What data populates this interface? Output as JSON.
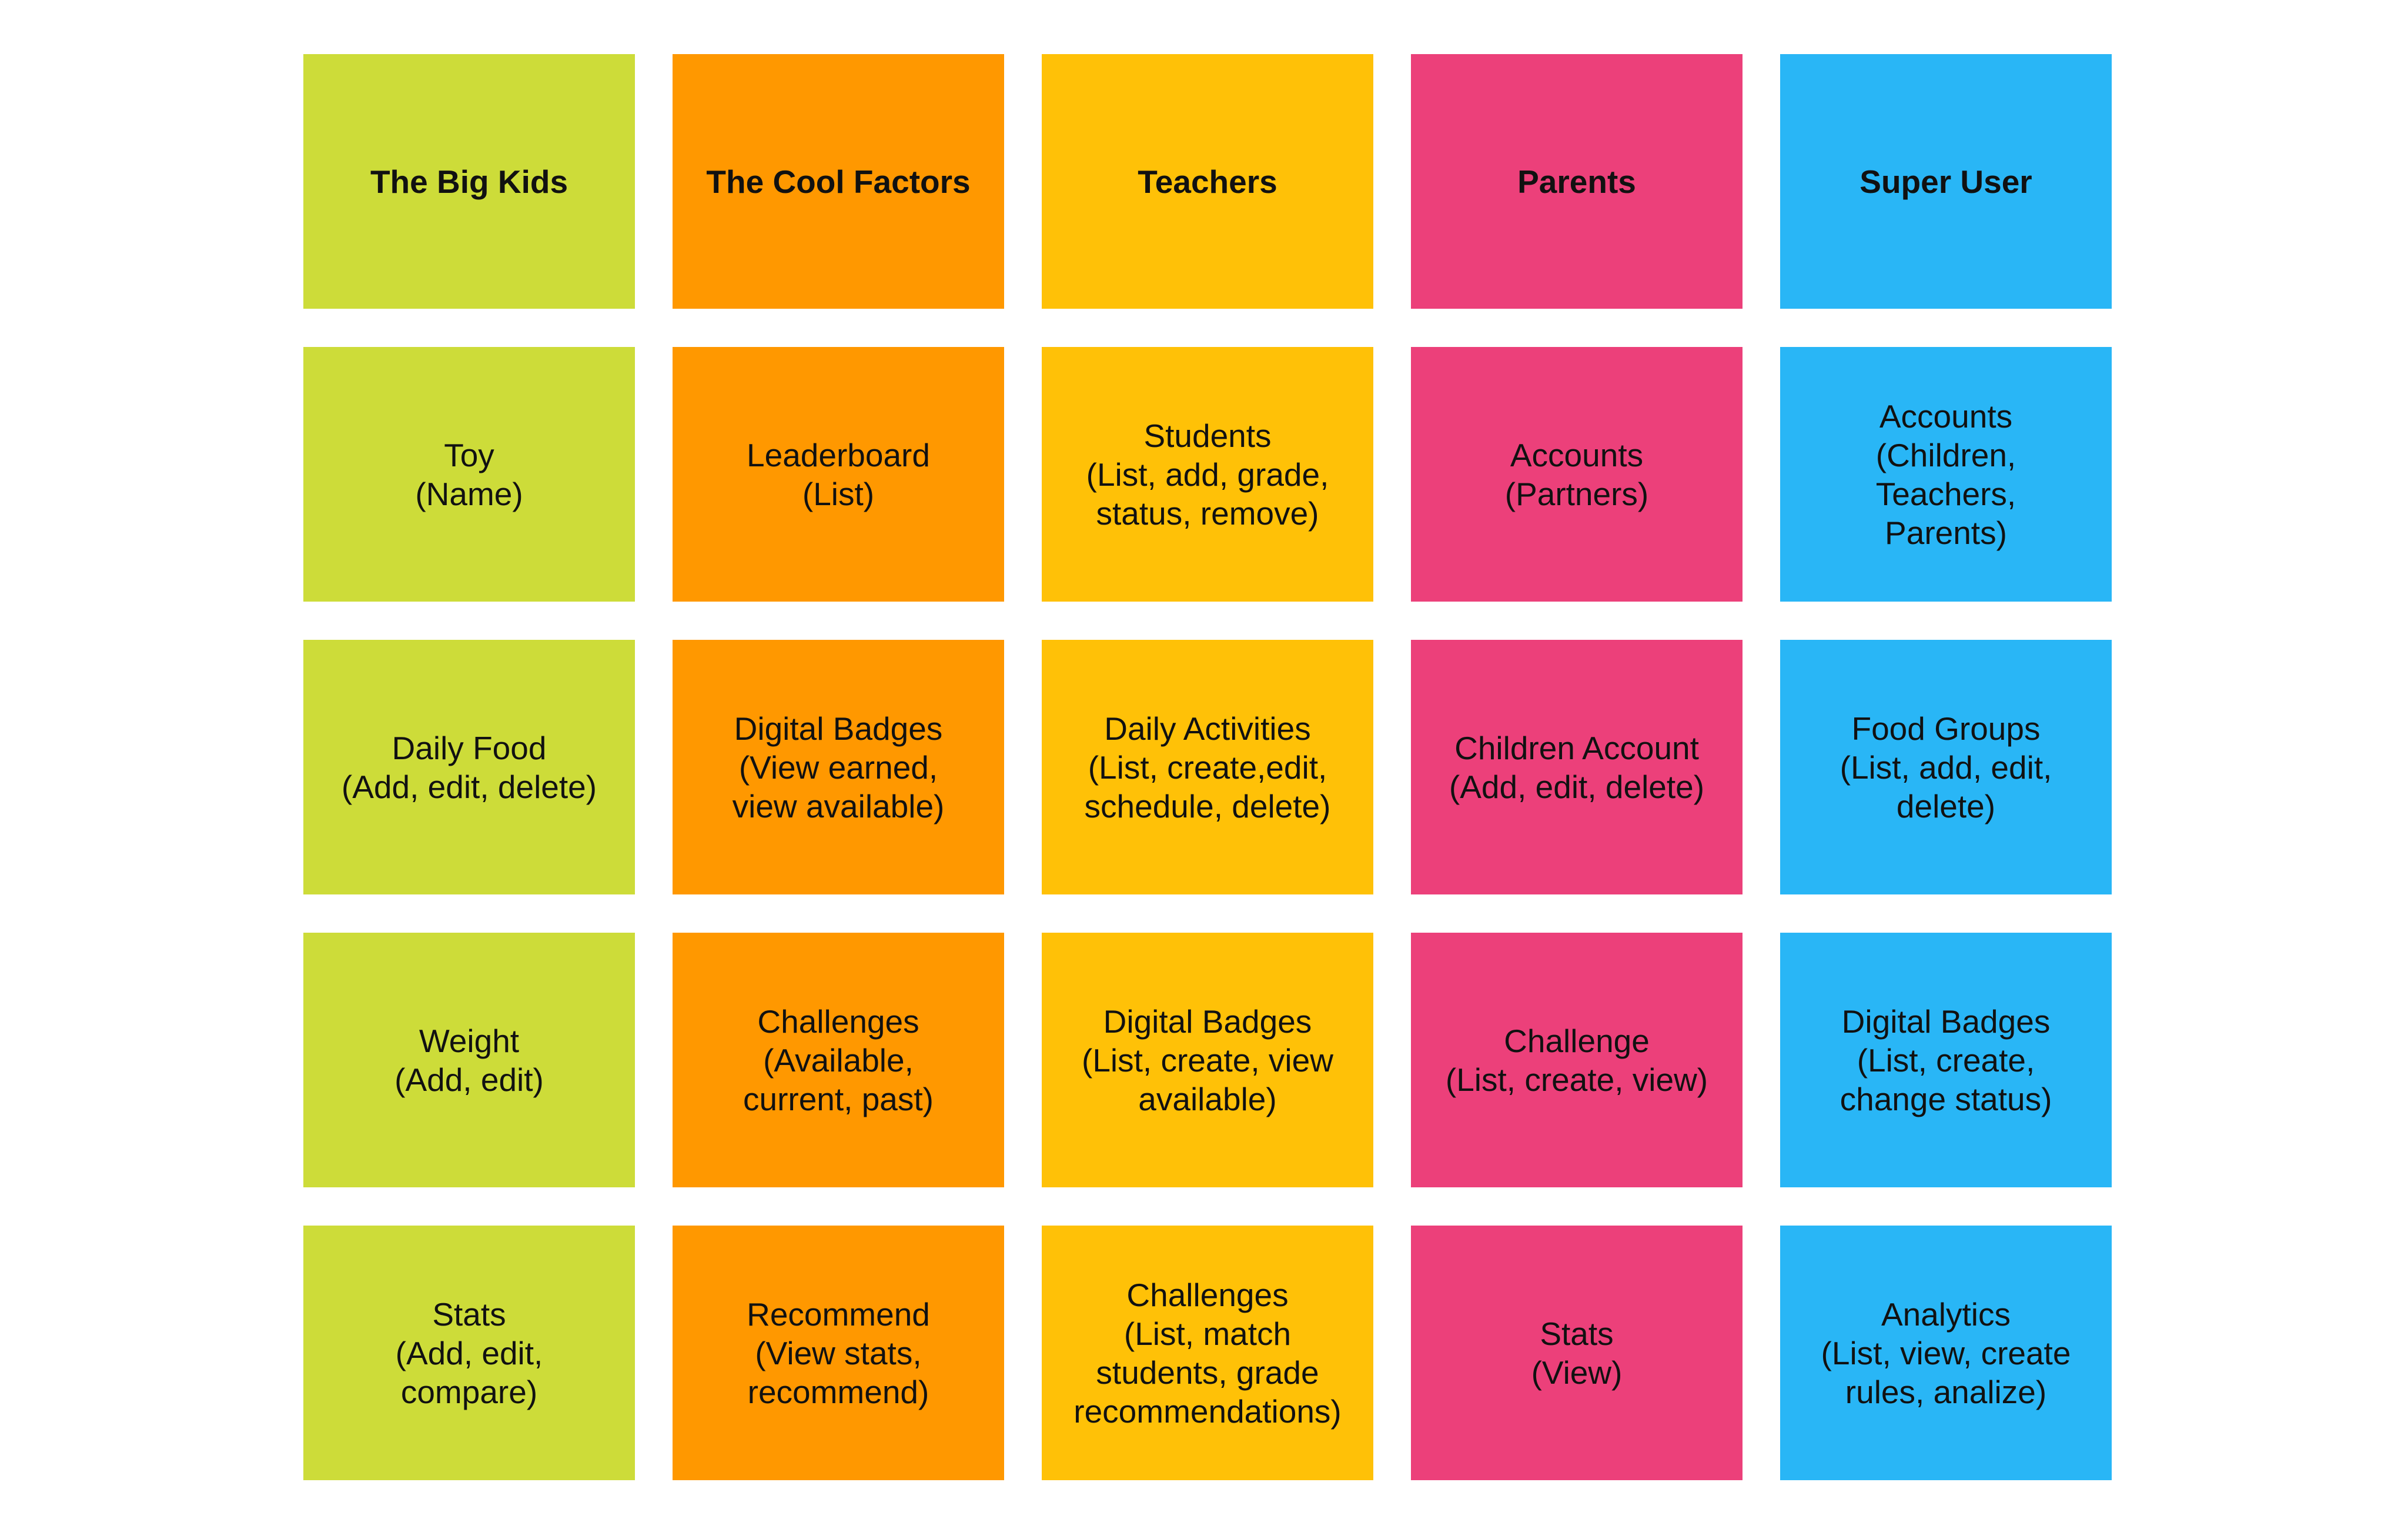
{
  "colors": {
    "lime": "#CDDC39",
    "orange": "#FF9800",
    "amber": "#FFC107",
    "pink": "#EC407A",
    "sky": "#29B6F6",
    "background": "#FFFFFF",
    "text": "#111111"
  },
  "columns": [
    {
      "color": "lime",
      "header": "The Big Kids",
      "notes": [
        "Toy\n(Name)",
        "Daily Food\n(Add, edit, delete)",
        "Weight\n(Add, edit)",
        "Stats\n(Add, edit,\ncompare)"
      ]
    },
    {
      "color": "orange",
      "header": "The Cool Factors",
      "notes": [
        "Leaderboard\n(List)",
        "Digital Badges\n(View earned,\nview available)",
        "Challenges\n(Available,\ncurrent, past)",
        "Recommend\n(View stats,\nrecommend)"
      ]
    },
    {
      "color": "amber",
      "header": "Teachers",
      "notes": [
        "Students\n(List, add, grade,\nstatus, remove)",
        "Daily Activities\n(List, create,edit,\nschedule, delete)",
        "Digital Badges\n(List, create, view\navailable)",
        "Challenges\n(List, match\nstudents, grade\nrecommendations)"
      ]
    },
    {
      "color": "pink",
      "header": "Parents",
      "notes": [
        "Accounts\n(Partners)",
        "Children Account\n(Add, edit, delete)",
        "Challenge\n(List, create, view)",
        "Stats\n(View)"
      ]
    },
    {
      "color": "sky",
      "header": "Super User",
      "notes": [
        "Accounts\n(Children,\nTeachers,\nParents)",
        "Food Groups\n(List, add, edit,\ndelete)",
        "Digital Badges\n(List, create,\nchange status)",
        "Analytics\n(List, view, create\nrules, analize)"
      ]
    }
  ]
}
